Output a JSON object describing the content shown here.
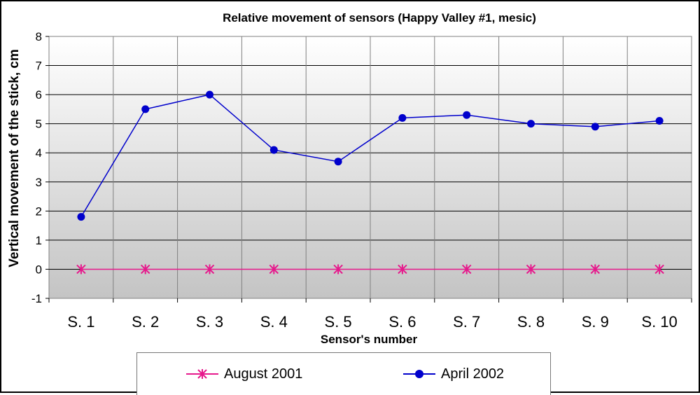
{
  "chart_data": {
    "type": "line",
    "title": "Relative movement of sensors (Happy Valley #1, mesic)",
    "xlabel": "Sensor's number",
    "ylabel": "Vertical movement of the stick, cm",
    "categories": [
      "S. 1",
      "S. 2",
      "S. 3",
      "S. 4",
      "S. 5",
      "S. 6",
      "S. 7",
      "S. 8",
      "S. 9",
      "S. 10"
    ],
    "ylim": [
      -1,
      8
    ],
    "yticks": [
      "-1",
      "0",
      "1",
      "2",
      "3",
      "4",
      "5",
      "6",
      "7",
      "8"
    ],
    "grid": true,
    "legend_position": "bottom",
    "series": [
      {
        "name": "August 2001",
        "values": [
          0,
          0,
          0,
          0,
          0,
          0,
          0,
          0,
          0,
          0
        ],
        "color": "#e6198c",
        "marker": "asterisk"
      },
      {
        "name": "April 2002",
        "values": [
          1.8,
          5.5,
          6.0,
          4.1,
          3.7,
          5.2,
          5.3,
          5.0,
          4.9,
          5.1
        ],
        "color": "#0000cc",
        "marker": "circle"
      }
    ]
  }
}
